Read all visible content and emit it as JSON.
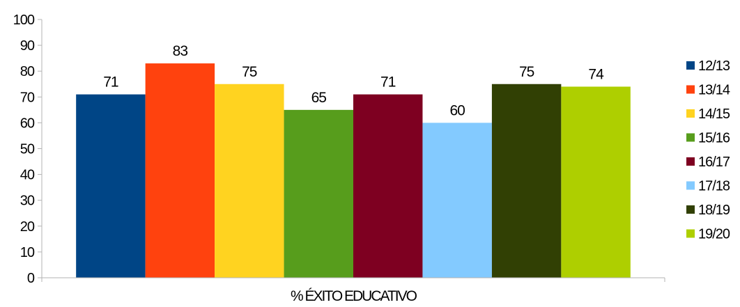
{
  "chart_data": {
    "type": "bar",
    "title": "",
    "xlabel": "",
    "ylabel": "",
    "categories": [
      "% ÉXITO EDUCATIVO"
    ],
    "series": [
      {
        "name": "12/13",
        "values": [
          71
        ],
        "color": "#004586"
      },
      {
        "name": "13/14",
        "values": [
          83
        ],
        "color": "#ff420e"
      },
      {
        "name": "14/15",
        "values": [
          75
        ],
        "color": "#ffd320"
      },
      {
        "name": "15/16",
        "values": [
          65
        ],
        "color": "#579d1c"
      },
      {
        "name": "16/17",
        "values": [
          71
        ],
        "color": "#7e0021"
      },
      {
        "name": "17/18",
        "values": [
          60
        ],
        "color": "#83caff"
      },
      {
        "name": "18/19",
        "values": [
          75
        ],
        "color": "#314004"
      },
      {
        "name": "19/20",
        "values": [
          74
        ],
        "color": "#aecf00"
      }
    ],
    "ylim": [
      0,
      100
    ],
    "yticks": [
      "0",
      "10",
      "20",
      "30",
      "40",
      "50",
      "60",
      "70",
      "80",
      "90",
      "100"
    ],
    "grid": false,
    "data_labels": true,
    "legend_position": "right"
  }
}
